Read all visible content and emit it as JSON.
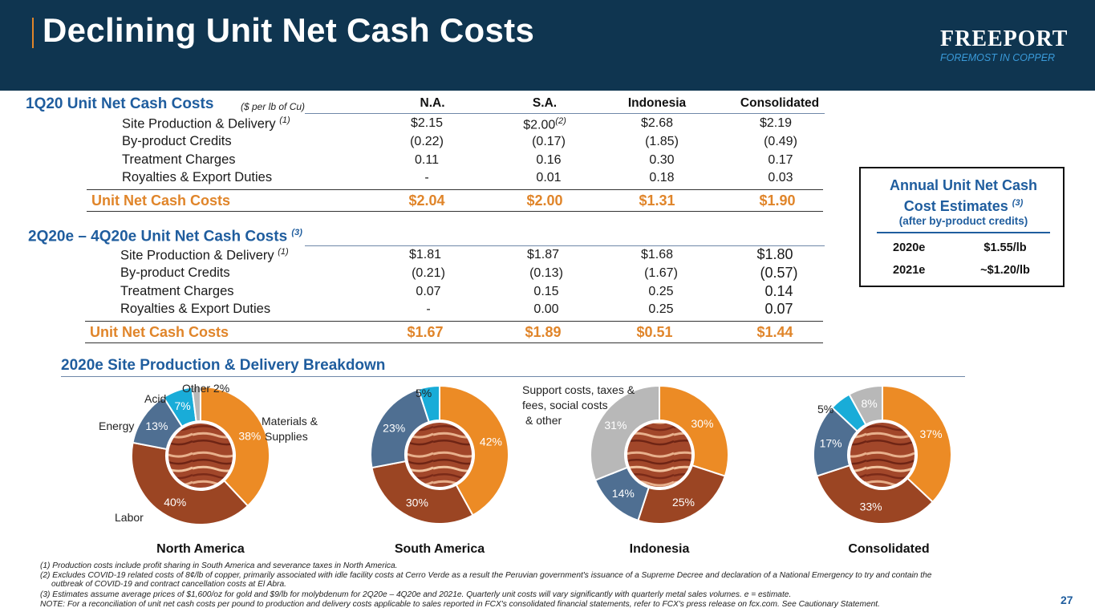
{
  "header": {
    "title": "Declining Unit Net Cash Costs",
    "logo_name": "FREEPORT",
    "logo_tagline": "FOREMOST IN COPPER"
  },
  "table1": {
    "title": "1Q20 Unit Net Cash Costs",
    "units": "($ per lb of Cu)",
    "columns": [
      "N.A.",
      "S.A.",
      "Indonesia",
      "Consolidated"
    ],
    "rows": [
      {
        "label": "Site Production & Delivery",
        "note": "(1)",
        "values": [
          "$2.15",
          "$2.00",
          "$2.68",
          "$2.19"
        ],
        "value_note": "(2)"
      },
      {
        "label": "By-product Credits",
        "values": [
          "(0.22)",
          "(0.17)",
          "(1.85)",
          "(0.49)"
        ]
      },
      {
        "label": "Treatment Charges",
        "values": [
          "0.11",
          "0.16",
          "0.30",
          "0.17"
        ]
      },
      {
        "label": "Royalties & Export Duties",
        "values": [
          "-",
          "0.01",
          "0.18",
          "0.03"
        ]
      }
    ],
    "total_label": "Unit Net Cash Costs",
    "totals": [
      "$2.04",
      "$2.00",
      "$1.31",
      "$1.90"
    ]
  },
  "table2": {
    "title": "2Q20e – 4Q20e Unit Net Cash Costs",
    "title_note": "(3)",
    "rows": [
      {
        "label": "Site Production & Delivery",
        "note": "(1)",
        "values": [
          "$1.81",
          "$1.87",
          "$1.68",
          "$1.80"
        ]
      },
      {
        "label": "By-product Credits",
        "values": [
          "(0.21)",
          "(0.13)",
          "(1.67)",
          "(0.57)"
        ]
      },
      {
        "label": "Treatment Charges",
        "values": [
          "0.07",
          "0.15",
          "0.25",
          "0.14"
        ]
      },
      {
        "label": "Royalties & Export Duties",
        "values": [
          "-",
          "0.00",
          "0.25",
          "0.07"
        ]
      }
    ],
    "total_label": "Unit Net Cash Costs",
    "totals": [
      "$1.67",
      "$1.89",
      "$0.51",
      "$1.44"
    ]
  },
  "estimates": {
    "title_line1": "Annual Unit Net Cash",
    "title_line2": "Cost Estimates",
    "title_note": "(3)",
    "subtitle": "(after by-product credits)",
    "rows": [
      {
        "year": "2020e",
        "value": "$1.55/lb"
      },
      {
        "year": "2021e",
        "value": "~$1.20/lb"
      }
    ]
  },
  "breakdown_title": "2020e Site Production & Delivery Breakdown",
  "colors": {
    "materials": "#ec8b25",
    "labor": "#9b4523",
    "energy": "#4f6f92",
    "acid": "#19acd8",
    "other": "#b8b8b8",
    "title_blue": "#1f5d9e",
    "header_navy": "#0f3550",
    "accent_orange": "#e0852a"
  },
  "chart_data": [
    {
      "type": "pie",
      "title": "North America",
      "slices": [
        {
          "category": "Materials & Supplies",
          "value": 38,
          "label": "38%",
          "color_key": "materials"
        },
        {
          "category": "Labor",
          "value": 40,
          "label": "40%",
          "color_key": "labor"
        },
        {
          "category": "Energy",
          "value": 13,
          "label": "13%",
          "color_key": "energy"
        },
        {
          "category": "Acid",
          "value": 7,
          "label": "7%",
          "color_key": "acid"
        },
        {
          "category": "Other",
          "value": 2,
          "label": "",
          "color_key": "other"
        }
      ],
      "annotations": [
        "Materials &",
        "Supplies",
        "Labor",
        "Energy",
        "Acid",
        "Other 2%"
      ]
    },
    {
      "type": "pie",
      "title": "South America",
      "slices": [
        {
          "value": 42,
          "label": "42%",
          "color_key": "materials"
        },
        {
          "value": 30,
          "label": "30%",
          "color_key": "labor"
        },
        {
          "value": 23,
          "label": "23%",
          "color_key": "energy"
        },
        {
          "value": 5,
          "label": "",
          "color_key": "acid"
        }
      ],
      "annotations": [
        "5%"
      ]
    },
    {
      "type": "pie",
      "title": "Indonesia",
      "slices": [
        {
          "value": 30,
          "label": "30%",
          "color_key": "materials"
        },
        {
          "value": 25,
          "label": "25%",
          "color_key": "labor"
        },
        {
          "value": 14,
          "label": "14%",
          "color_key": "energy"
        },
        {
          "category": "Support costs, taxes & fees, social costs & other",
          "value": 31,
          "label": "31%",
          "color_key": "other"
        }
      ],
      "annotations": [
        "Support costs, taxes &",
        "fees, social costs",
        "& other"
      ]
    },
    {
      "type": "pie",
      "title": "Consolidated",
      "slices": [
        {
          "value": 37,
          "label": "37%",
          "color_key": "materials"
        },
        {
          "value": 33,
          "label": "33%",
          "color_key": "labor"
        },
        {
          "value": 17,
          "label": "17%",
          "color_key": "energy"
        },
        {
          "value": 5,
          "label": "",
          "color_key": "acid"
        },
        {
          "value": 8,
          "label": "8%",
          "color_key": "other"
        }
      ],
      "annotations": [
        "5%"
      ]
    }
  ],
  "footnotes": [
    "(1)  Production costs include profit sharing in South America and severance taxes in North America.",
    "(2)  Excludes COVID-19 related costs of 8¢/lb of copper, primarily associated with idle facility costs at Cerro Verde as a result the Peruvian government's issuance of a Supreme Decree and declaration of a National Emergency to try and contain the",
    "outbreak of COVID-19 and contract cancellation costs at El Abra.",
    "(3)  Estimates assume average prices of $1,600/oz for gold and $9/lb for molybdenum for 2Q20e – 4Q20e and 2021e.  Quarterly unit costs will vary significantly with quarterly metal sales volumes. e = estimate.",
    "NOTE: For a reconciliation of unit net cash costs per pound to production and delivery costs applicable to sales reported in FCX's consolidated financial statements, refer to FCX's press release on fcx.com. See Cautionary Statement."
  ],
  "page_number": "27"
}
